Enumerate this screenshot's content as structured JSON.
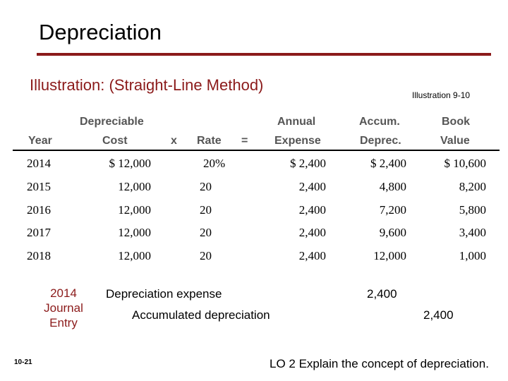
{
  "title": "Depreciation",
  "illustration_label": "Illustration:  (Straight-Line Method)",
  "illustration_ref": "Illustration 9-10",
  "headers": {
    "year": "Year",
    "cost_top": "Depreciable",
    "cost": "Cost",
    "times": "x",
    "rate": "Rate",
    "equals": "=",
    "expense_top": "Annual",
    "expense": "Expense",
    "accum_top": "Accum.",
    "accum": "Deprec.",
    "book_top": "Book",
    "book": "Value"
  },
  "rows": [
    {
      "year": "2014",
      "cost": "$ 12,000",
      "rate": "20%",
      "expense": "$ 2,400",
      "accum": "$ 2,400",
      "book": "$ 10,600"
    },
    {
      "year": "2015",
      "cost": "12,000",
      "rate": "20",
      "expense": "2,400",
      "accum": "4,800",
      "book": "8,200"
    },
    {
      "year": "2016",
      "cost": "12,000",
      "rate": "20",
      "expense": "2,400",
      "accum": "7,200",
      "book": "5,800"
    },
    {
      "year": "2017",
      "cost": "12,000",
      "rate": "20",
      "expense": "2,400",
      "accum": "9,600",
      "book": "3,400"
    },
    {
      "year": "2018",
      "cost": "12,000",
      "rate": "20",
      "expense": "2,400",
      "accum": "12,000",
      "book": "1,000"
    }
  ],
  "journal": {
    "label_line1": "2014",
    "label_line2": "Journal",
    "label_line3": "Entry",
    "debit_account": "Depreciation expense",
    "debit_amount": "2,400",
    "credit_account": "Accumulated depreciation",
    "credit_amount": "2,400"
  },
  "page_number": "10-21",
  "learning_objective": "LO 2  Explain the concept of depreciation.",
  "colors": {
    "accent": "#8b1a1a",
    "header_text": "#555555"
  }
}
